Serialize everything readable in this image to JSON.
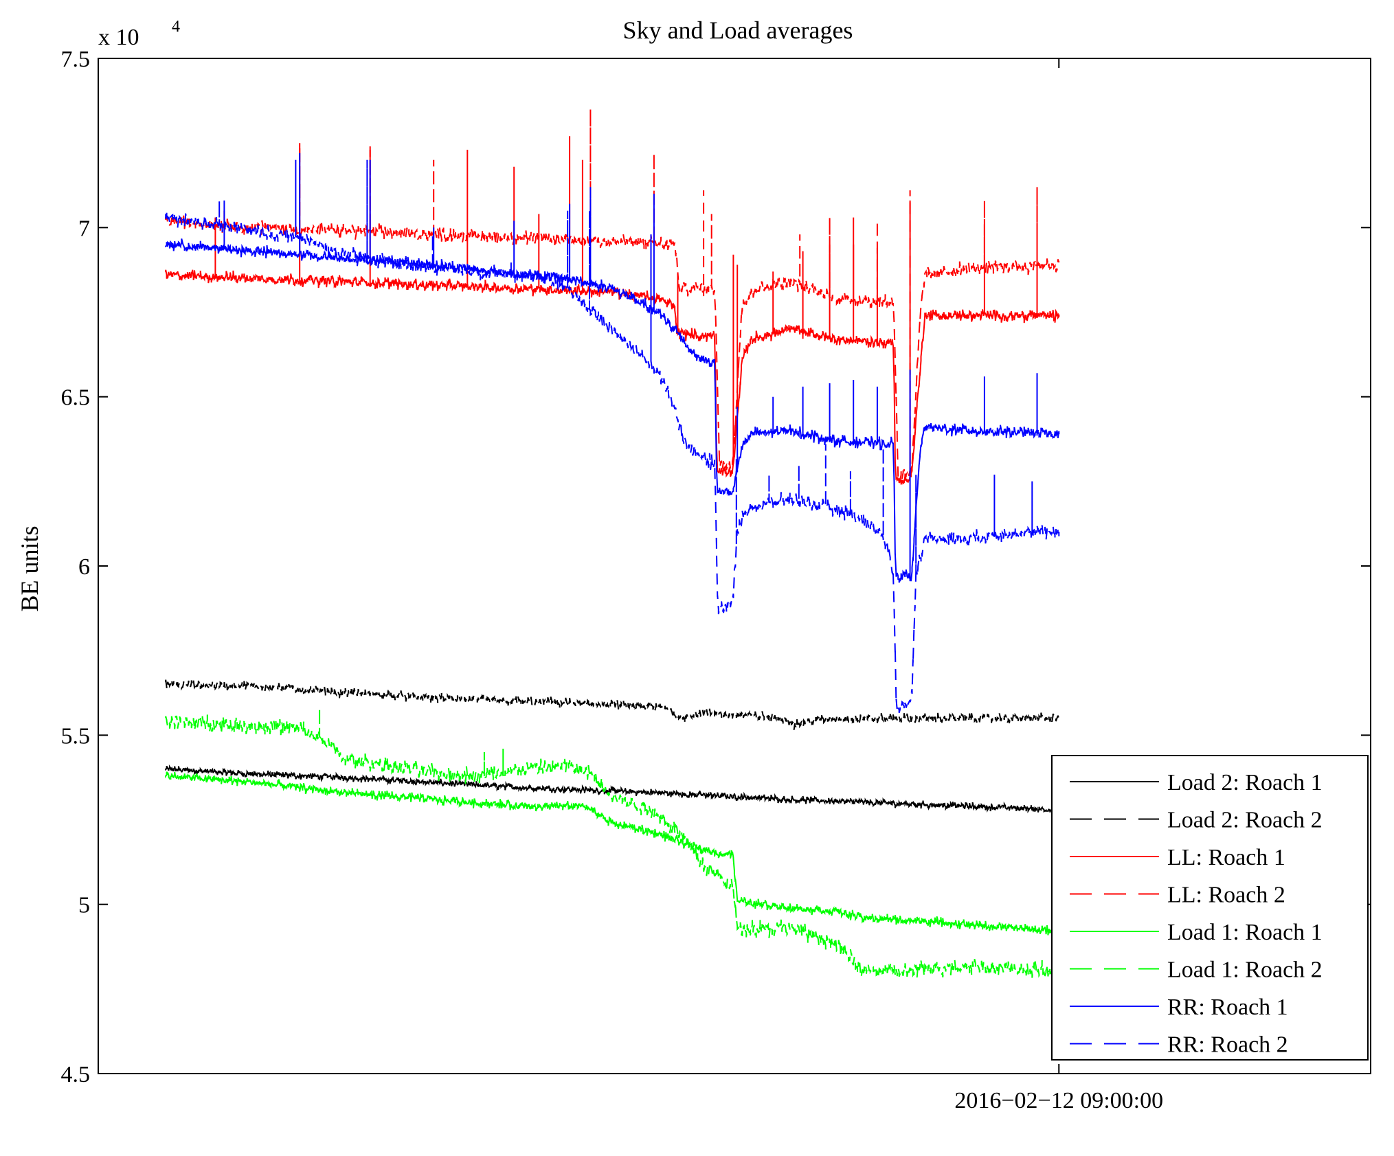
{
  "chart_data": {
    "type": "line",
    "title": "Sky and Load averages",
    "xlabel": "",
    "ylabel": "BE units",
    "y_exponent_prefix": "x 10",
    "y_exponent_power": "4",
    "y_multiplier": 10000,
    "ylim": [
      4.5,
      7.5
    ],
    "yticks": [
      4.5,
      5,
      5.5,
      6,
      6.5,
      7,
      7.5
    ],
    "ytick_labels": [
      "4.5",
      "5",
      "5.5",
      "6",
      "6.5",
      "7",
      "7.5"
    ],
    "xlim": [
      0,
      100
    ],
    "xticks": [
      75.5
    ],
    "xtick_labels": [
      "2016−02−12 09:00:00"
    ],
    "grid": false,
    "legend_position": "bottom-right",
    "x_range_data": [
      5.3,
      75.5
    ],
    "series": [
      {
        "name": "Load 2: Roach 1",
        "color": "#000000",
        "dash": "solid",
        "noise": 0.006,
        "points": [
          [
            0,
            5.4
          ],
          [
            10,
            5.385
          ],
          [
            20,
            5.375
          ],
          [
            30,
            5.36
          ],
          [
            40,
            5.345
          ],
          [
            55,
            5.33
          ],
          [
            70,
            5.31
          ],
          [
            85,
            5.295
          ],
          [
            100,
            5.28
          ]
        ]
      },
      {
        "name": "Load 2: Roach 2",
        "color": "#000000",
        "dash": "dashed",
        "noise": 0.008,
        "points": [
          [
            0,
            5.65
          ],
          [
            10,
            5.645
          ],
          [
            20,
            5.625
          ],
          [
            30,
            5.61
          ],
          [
            40,
            5.6
          ],
          [
            50,
            5.59
          ],
          [
            56,
            5.58
          ],
          [
            57.5,
            5.55
          ],
          [
            60,
            5.565
          ],
          [
            65,
            5.56
          ],
          [
            69,
            5.55
          ],
          [
            70.5,
            5.53
          ],
          [
            72.5,
            5.545
          ],
          [
            80,
            5.55
          ],
          [
            100,
            5.55
          ]
        ]
      },
      {
        "name": "LL: Roach 1",
        "color": "#ff0000",
        "dash": "solid",
        "noise": 0.01,
        "points": [
          [
            0,
            6.86
          ],
          [
            10,
            6.85
          ],
          [
            20,
            6.84
          ],
          [
            30,
            6.83
          ],
          [
            40,
            6.82
          ],
          [
            50,
            6.81
          ],
          [
            55,
            6.79
          ],
          [
            57,
            6.77
          ],
          [
            57.2,
            6.69
          ],
          [
            60,
            6.68
          ],
          [
            61.5,
            6.68
          ],
          [
            61.7,
            6.28
          ],
          [
            63.5,
            6.28
          ],
          [
            64.5,
            6.6
          ],
          [
            65.5,
            6.67
          ],
          [
            70,
            6.7
          ],
          [
            75,
            6.67
          ],
          [
            80,
            6.66
          ],
          [
            81.5,
            6.66
          ],
          [
            81.7,
            6.25
          ],
          [
            83.5,
            6.26
          ],
          [
            84.5,
            6.6
          ],
          [
            85,
            6.74
          ],
          [
            90,
            6.74
          ],
          [
            100,
            6.74
          ]
        ]
      },
      {
        "name": "LL: Roach 2",
        "color": "#ff0000",
        "dash": "dashed",
        "noise": 0.012,
        "points": [
          [
            0,
            7.02
          ],
          [
            10,
            7.0
          ],
          [
            20,
            6.99
          ],
          [
            30,
            6.98
          ],
          [
            40,
            6.97
          ],
          [
            50,
            6.96
          ],
          [
            57,
            6.95
          ],
          [
            57.5,
            6.82
          ],
          [
            61.5,
            6.82
          ],
          [
            62,
            6.3
          ],
          [
            63.5,
            6.3
          ],
          [
            64.5,
            6.77
          ],
          [
            66,
            6.82
          ],
          [
            70,
            6.84
          ],
          [
            75,
            6.79
          ],
          [
            81.5,
            6.78
          ],
          [
            82,
            6.27
          ],
          [
            83.5,
            6.28
          ],
          [
            84.5,
            6.75
          ],
          [
            85,
            6.86
          ],
          [
            90,
            6.88
          ],
          [
            100,
            6.89
          ]
        ]
      },
      {
        "name": "Load 1: Roach 1",
        "color": "#00ff00",
        "dash": "solid",
        "noise": 0.008,
        "points": [
          [
            0,
            5.38
          ],
          [
            10,
            5.36
          ],
          [
            20,
            5.33
          ],
          [
            30,
            5.31
          ],
          [
            40,
            5.29
          ],
          [
            47,
            5.29
          ],
          [
            50,
            5.24
          ],
          [
            55,
            5.21
          ],
          [
            58,
            5.18
          ],
          [
            62,
            5.15
          ],
          [
            63.5,
            5.15
          ],
          [
            64,
            5.01
          ],
          [
            70,
            4.99
          ],
          [
            75,
            4.98
          ],
          [
            78,
            4.96
          ],
          [
            85,
            4.95
          ],
          [
            100,
            4.92
          ]
        ]
      },
      {
        "name": "Load 1: Roach 2",
        "color": "#00ff00",
        "dash": "dashed",
        "noise": 0.014,
        "points": [
          [
            0,
            5.54
          ],
          [
            8,
            5.53
          ],
          [
            15,
            5.52
          ],
          [
            18,
            5.48
          ],
          [
            20,
            5.43
          ],
          [
            25,
            5.41
          ],
          [
            30,
            5.39
          ],
          [
            35,
            5.38
          ],
          [
            40,
            5.4
          ],
          [
            45,
            5.41
          ],
          [
            48,
            5.38
          ],
          [
            50,
            5.32
          ],
          [
            55,
            5.27
          ],
          [
            58,
            5.2
          ],
          [
            60,
            5.12
          ],
          [
            63.5,
            5.05
          ],
          [
            64,
            4.93
          ],
          [
            70,
            4.93
          ],
          [
            75,
            4.88
          ],
          [
            78,
            4.81
          ],
          [
            82,
            4.8
          ],
          [
            90,
            4.82
          ],
          [
            100,
            4.8
          ]
        ]
      },
      {
        "name": "RR: Roach 1",
        "color": "#0000ff",
        "dash": "solid",
        "noise": 0.01,
        "points": [
          [
            0,
            6.95
          ],
          [
            10,
            6.93
          ],
          [
            20,
            6.91
          ],
          [
            30,
            6.89
          ],
          [
            40,
            6.86
          ],
          [
            45,
            6.85
          ],
          [
            50,
            6.82
          ],
          [
            53,
            6.78
          ],
          [
            55,
            6.75
          ],
          [
            57,
            6.7
          ],
          [
            59,
            6.63
          ],
          [
            61,
            6.6
          ],
          [
            61.5,
            6.6
          ],
          [
            61.7,
            6.22
          ],
          [
            63.5,
            6.22
          ],
          [
            64.5,
            6.35
          ],
          [
            65.5,
            6.39
          ],
          [
            70,
            6.4
          ],
          [
            75,
            6.37
          ],
          [
            81.5,
            6.36
          ],
          [
            81.7,
            5.97
          ],
          [
            83.5,
            5.97
          ],
          [
            84.5,
            6.35
          ],
          [
            85,
            6.41
          ],
          [
            90,
            6.4
          ],
          [
            100,
            6.39
          ]
        ]
      },
      {
        "name": "RR: Roach 2",
        "color": "#0000ff",
        "dash": "dashed",
        "noise": 0.012,
        "points": [
          [
            0,
            7.03
          ],
          [
            10,
            6.99
          ],
          [
            15,
            6.97
          ],
          [
            20,
            6.92
          ],
          [
            25,
            6.9
          ],
          [
            30,
            6.88
          ],
          [
            35,
            6.87
          ],
          [
            40,
            6.86
          ],
          [
            43,
            6.85
          ],
          [
            46,
            6.8
          ],
          [
            49,
            6.72
          ],
          [
            52,
            6.65
          ],
          [
            55,
            6.58
          ],
          [
            57,
            6.47
          ],
          [
            58,
            6.37
          ],
          [
            60,
            6.32
          ],
          [
            61.5,
            6.3
          ],
          [
            61.8,
            5.87
          ],
          [
            63.5,
            5.9
          ],
          [
            64,
            6.1
          ],
          [
            65,
            6.17
          ],
          [
            70,
            6.2
          ],
          [
            73,
            6.18
          ],
          [
            77,
            6.15
          ],
          [
            80,
            6.1
          ],
          [
            81,
            6.04
          ],
          [
            81.5,
            5.95
          ],
          [
            81.8,
            5.58
          ],
          [
            83.5,
            5.6
          ],
          [
            84,
            5.98
          ],
          [
            85,
            6.08
          ],
          [
            90,
            6.08
          ],
          [
            95,
            6.1
          ],
          [
            100,
            6.1
          ]
        ]
      }
    ],
    "spikes": [
      {
        "series": 0,
        "at": [],
        "to": []
      },
      {
        "series": 1,
        "at": [],
        "to": []
      },
      {
        "series": 2,
        "at": [
          5.5,
          15,
          22.8,
          33.7,
          41.7,
          46.6,
          57.3,
          64,
          68,
          71.3,
          74.3,
          77,
          79.6,
          83.3,
          91.6,
          97.5
        ],
        "to": [
          7.03,
          7.25,
          7.24,
          7.23,
          7.04,
          7.2,
          6.86,
          6.89,
          6.87,
          6.93,
          6.95,
          6.95,
          6.94,
          7.08,
          7.01,
          6.97
        ]
      },
      {
        "series": 3,
        "at": [
          6.5,
          15,
          22.8,
          30,
          39,
          45.2,
          47.5,
          54.6,
          60.2,
          61.1,
          63.5,
          71,
          74.3,
          77,
          79.6,
          83.3,
          91.6,
          97.5
        ],
        "to": [
          7.05,
          7.24,
          7.23,
          7.2,
          7.18,
          7.27,
          7.35,
          7.22,
          7.11,
          7.04,
          6.92,
          6.98,
          7.03,
          7.03,
          7.02,
          7.11,
          7.08,
          7.12
        ]
      },
      {
        "series": 4,
        "at": [],
        "to": []
      },
      {
        "series": 5,
        "at": [
          17.2,
          35.6,
          37.7
        ],
        "to": [
          5.58,
          5.45,
          5.46
        ]
      },
      {
        "series": 6,
        "at": [
          6.5,
          15,
          22.8,
          30,
          39,
          45.2,
          47.5,
          54.6,
          64,
          68,
          71.3,
          74.3,
          77,
          79.6,
          83.3,
          91.6,
          97.5
        ],
        "to": [
          7.08,
          7.22,
          7.2,
          7.0,
          7.02,
          7.07,
          7.12,
          7.1,
          6.47,
          6.5,
          6.53,
          6.54,
          6.55,
          6.53,
          6.58,
          6.56,
          6.57
        ]
      },
      {
        "series": 7,
        "at": [
          6,
          14.5,
          22.5,
          29.8,
          38.6,
          45,
          47.4,
          54.3,
          63.8,
          67.5,
          70.8,
          73.8,
          76.6,
          80.3,
          83.9,
          92.7,
          97
        ],
        "to": [
          7.08,
          7.2,
          7.2,
          6.98,
          6.9,
          7.05,
          7.05,
          6.98,
          6.32,
          6.27,
          6.3,
          6.36,
          6.28,
          6.35,
          6.27,
          6.27,
          6.25
        ]
      }
    ]
  }
}
